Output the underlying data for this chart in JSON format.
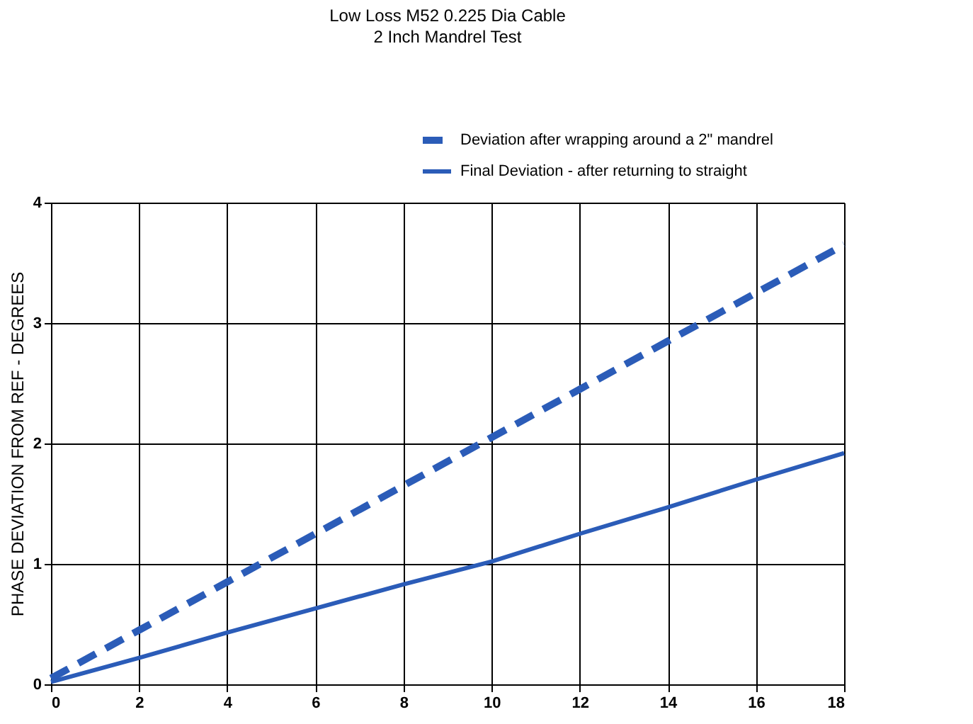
{
  "chart_data": {
    "type": "line",
    "title": "Low Loss M52 0.225 Dia Cable",
    "subtitle": "2 Inch Mandrel Test",
    "ylabel": "PHASE DEVIATION FROM REF - DEGREES",
    "x": [
      0,
      2,
      4,
      6,
      8,
      10,
      12,
      14,
      16,
      18
    ],
    "series": [
      {
        "name": "Deviation after wrapping around a 2\" mandrel",
        "color": "#2b5cb8",
        "line_style": "dashed",
        "values": [
          0.05,
          0.45,
          0.85,
          1.25,
          1.65,
          2.05,
          2.45,
          2.85,
          3.25,
          3.65
        ]
      },
      {
        "name": "Final Deviation - after returning to straight",
        "color": "#2b5cb8",
        "line_style": "solid",
        "values": [
          0.02,
          0.22,
          0.43,
          0.63,
          0.83,
          1.02,
          1.25,
          1.47,
          1.7,
          1.92
        ]
      }
    ],
    "xlim": [
      0,
      18
    ],
    "xticks": [
      0,
      2,
      4,
      6,
      8,
      10,
      12,
      14,
      16,
      18
    ],
    "ylim": [
      0,
      4
    ],
    "yticks": [
      0,
      1,
      2,
      3,
      4
    ],
    "grid": true,
    "legend": "top right",
    "marker": "none"
  }
}
